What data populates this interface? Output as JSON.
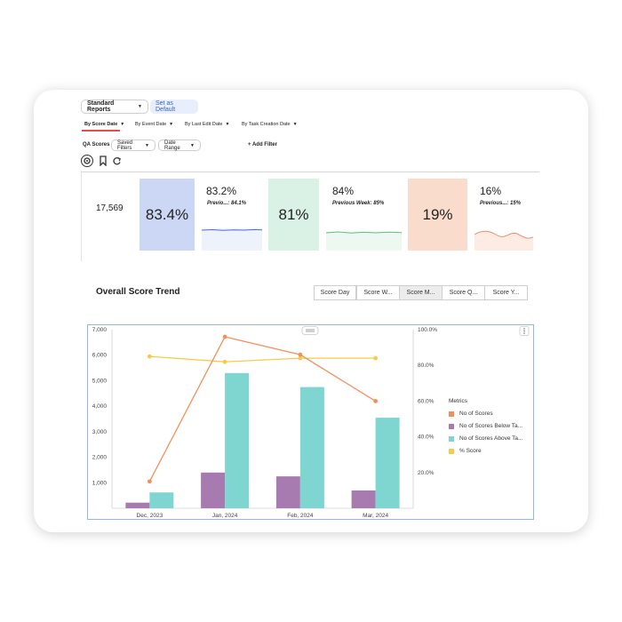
{
  "report_menu": {
    "label": "Standard Reports",
    "set_default_label": "Set as Default"
  },
  "date_tabs": [
    {
      "label": "By Score Date"
    },
    {
      "label": "By Event Date"
    },
    {
      "label": "By Last Edit Date"
    },
    {
      "label": "By Task Creation Date"
    }
  ],
  "filters": {
    "qa_label": "QA Scores",
    "saved_filters": "Saved Filters",
    "date_range": "Date Range",
    "add_filter": "+ Add Filter"
  },
  "kpis": {
    "total": "17,569",
    "cards": [
      {
        "big": "83.4%",
        "value": "83.2%",
        "previous": "Previo...: 84.1%",
        "color": "#ccd7f5",
        "line_color": "#4f6fc8"
      },
      {
        "big": "81%",
        "value": "84%",
        "previous": "Previous Week: 85%",
        "color": "#daf2e5",
        "line_color": "#5dc27f"
      },
      {
        "big": "19%",
        "value": "16%",
        "previous": "Previous...: 15%",
        "color": "#fadccc",
        "line_color": "#e9906c"
      }
    ]
  },
  "trend": {
    "title": "Overall Score Trend",
    "buttons": [
      "Score Day",
      "Score W...",
      "Score M...",
      "Score Q...",
      "Score Y..."
    ],
    "active_button": "Score M...",
    "legend_title": "Metrics"
  },
  "colors": {
    "count": "#f0915c",
    "below": "#a77bb0",
    "above": "#7fd6d1",
    "score": "#f4cc4a",
    "accent": "#3a63c8"
  },
  "chart_data": {
    "type": "bar",
    "categories": [
      "Dec, 2023",
      "Jan, 2024",
      "Feb, 2024",
      "Mar, 2024"
    ],
    "series": [
      {
        "name": "No of Scores",
        "type": "line",
        "axis": "right",
        "values": [
          15,
          96,
          86,
          60
        ]
      },
      {
        "name": "No of Scores Below Ta...",
        "type": "bar",
        "axis": "left",
        "values": [
          220,
          1400,
          1250,
          700
        ]
      },
      {
        "name": "No of Scores Above Ta...",
        "type": "bar",
        "axis": "left",
        "values": [
          620,
          5300,
          4750,
          3550
        ]
      },
      {
        "name": "% Score",
        "type": "line",
        "axis": "right",
        "values": [
          85,
          82,
          84,
          84
        ]
      }
    ],
    "y_left": {
      "range": [
        0,
        7000
      ],
      "ticks": [
        "1,000",
        "2,000",
        "3,000",
        "4,000",
        "5,000",
        "6,000",
        "7,000"
      ]
    },
    "y_right": {
      "range": [
        0,
        100
      ],
      "ticks": [
        "20.0%",
        "40.0%",
        "60.0%",
        "80.0%",
        "100.0%"
      ]
    },
    "legend_position": "right"
  }
}
